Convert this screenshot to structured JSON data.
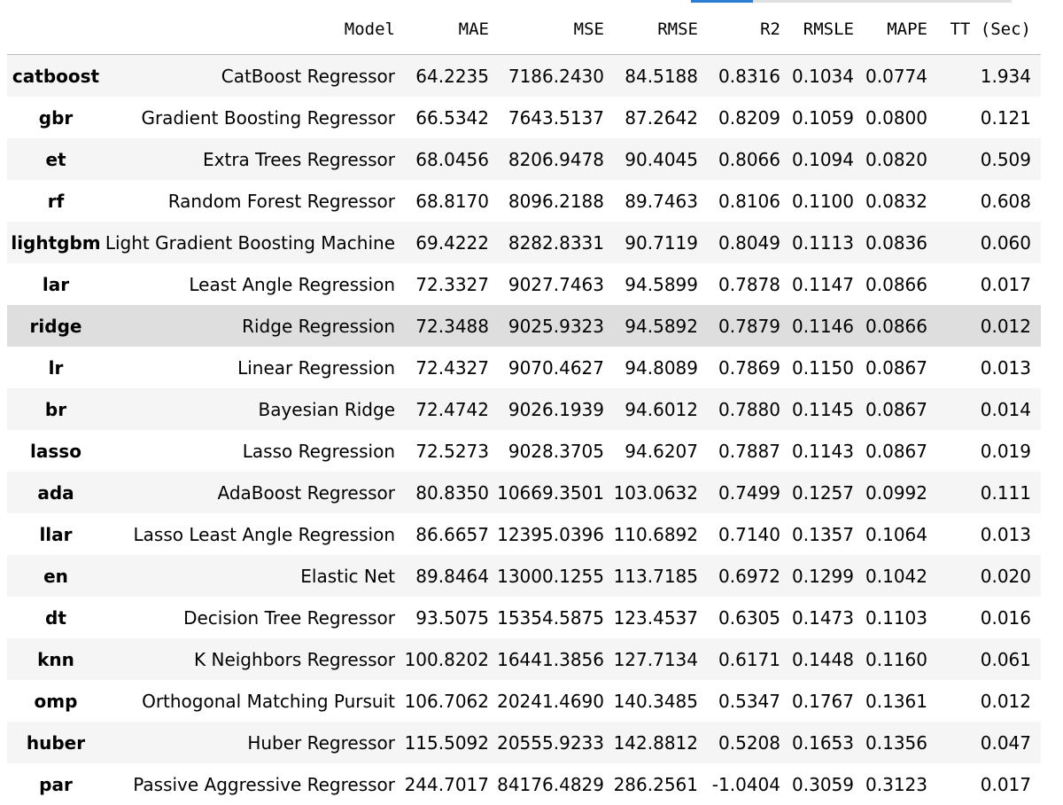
{
  "columns": {
    "model": "Model",
    "mae": "MAE",
    "mse": "MSE",
    "rmse": "RMSE",
    "r2": "R2",
    "rmsle": "RMSLE",
    "mape": "MAPE",
    "tt": "TT (Sec)"
  },
  "highlighted_row": "ridge",
  "rows": [
    {
      "id": "catboost",
      "model": "CatBoost Regressor",
      "mae": "64.2235",
      "mse": "7186.2430",
      "rmse": "84.5188",
      "r2": "0.8316",
      "rmsle": "0.1034",
      "mape": "0.0774",
      "tt": "1.934"
    },
    {
      "id": "gbr",
      "model": "Gradient Boosting Regressor",
      "mae": "66.5342",
      "mse": "7643.5137",
      "rmse": "87.2642",
      "r2": "0.8209",
      "rmsle": "0.1059",
      "mape": "0.0800",
      "tt": "0.121"
    },
    {
      "id": "et",
      "model": "Extra Trees Regressor",
      "mae": "68.0456",
      "mse": "8206.9478",
      "rmse": "90.4045",
      "r2": "0.8066",
      "rmsle": "0.1094",
      "mape": "0.0820",
      "tt": "0.509"
    },
    {
      "id": "rf",
      "model": "Random Forest Regressor",
      "mae": "68.8170",
      "mse": "8096.2188",
      "rmse": "89.7463",
      "r2": "0.8106",
      "rmsle": "0.1100",
      "mape": "0.0832",
      "tt": "0.608"
    },
    {
      "id": "lightgbm",
      "model": "Light Gradient Boosting Machine",
      "mae": "69.4222",
      "mse": "8282.8331",
      "rmse": "90.7119",
      "r2": "0.8049",
      "rmsle": "0.1113",
      "mape": "0.0836",
      "tt": "0.060"
    },
    {
      "id": "lar",
      "model": "Least Angle Regression",
      "mae": "72.3327",
      "mse": "9027.7463",
      "rmse": "94.5899",
      "r2": "0.7878",
      "rmsle": "0.1147",
      "mape": "0.0866",
      "tt": "0.017"
    },
    {
      "id": "ridge",
      "model": "Ridge Regression",
      "mae": "72.3488",
      "mse": "9025.9323",
      "rmse": "94.5892",
      "r2": "0.7879",
      "rmsle": "0.1146",
      "mape": "0.0866",
      "tt": "0.012"
    },
    {
      "id": "lr",
      "model": "Linear Regression",
      "mae": "72.4327",
      "mse": "9070.4627",
      "rmse": "94.8089",
      "r2": "0.7869",
      "rmsle": "0.1150",
      "mape": "0.0867",
      "tt": "0.013"
    },
    {
      "id": "br",
      "model": "Bayesian Ridge",
      "mae": "72.4742",
      "mse": "9026.1939",
      "rmse": "94.6012",
      "r2": "0.7880",
      "rmsle": "0.1145",
      "mape": "0.0867",
      "tt": "0.014"
    },
    {
      "id": "lasso",
      "model": "Lasso Regression",
      "mae": "72.5273",
      "mse": "9028.3705",
      "rmse": "94.6207",
      "r2": "0.7887",
      "rmsle": "0.1143",
      "mape": "0.0867",
      "tt": "0.019"
    },
    {
      "id": "ada",
      "model": "AdaBoost Regressor",
      "mae": "80.8350",
      "mse": "10669.3501",
      "rmse": "103.0632",
      "r2": "0.7499",
      "rmsle": "0.1257",
      "mape": "0.0992",
      "tt": "0.111"
    },
    {
      "id": "llar",
      "model": "Lasso Least Angle Regression",
      "mae": "86.6657",
      "mse": "12395.0396",
      "rmse": "110.6892",
      "r2": "0.7140",
      "rmsle": "0.1357",
      "mape": "0.1064",
      "tt": "0.013"
    },
    {
      "id": "en",
      "model": "Elastic Net",
      "mae": "89.8464",
      "mse": "13000.1255",
      "rmse": "113.7185",
      "r2": "0.6972",
      "rmsle": "0.1299",
      "mape": "0.1042",
      "tt": "0.020"
    },
    {
      "id": "dt",
      "model": "Decision Tree Regressor",
      "mae": "93.5075",
      "mse": "15354.5875",
      "rmse": "123.4537",
      "r2": "0.6305",
      "rmsle": "0.1473",
      "mape": "0.1103",
      "tt": "0.016"
    },
    {
      "id": "knn",
      "model": "K Neighbors Regressor",
      "mae": "100.8202",
      "mse": "16441.3856",
      "rmse": "127.7134",
      "r2": "0.6171",
      "rmsle": "0.1448",
      "mape": "0.1160",
      "tt": "0.061"
    },
    {
      "id": "omp",
      "model": "Orthogonal Matching Pursuit",
      "mae": "106.7062",
      "mse": "20241.4690",
      "rmse": "140.3485",
      "r2": "0.5347",
      "rmsle": "0.1767",
      "mape": "0.1361",
      "tt": "0.012"
    },
    {
      "id": "huber",
      "model": "Huber Regressor",
      "mae": "115.5092",
      "mse": "20555.9233",
      "rmse": "142.8812",
      "r2": "0.5208",
      "rmsle": "0.1653",
      "mape": "0.1356",
      "tt": "0.047"
    },
    {
      "id": "par",
      "model": "Passive Aggressive Regressor",
      "mae": "244.7017",
      "mse": "84176.4829",
      "rmse": "286.2561",
      "r2": "-1.0404",
      "rmsle": "0.3059",
      "mape": "0.3123",
      "tt": "0.017"
    }
  ]
}
